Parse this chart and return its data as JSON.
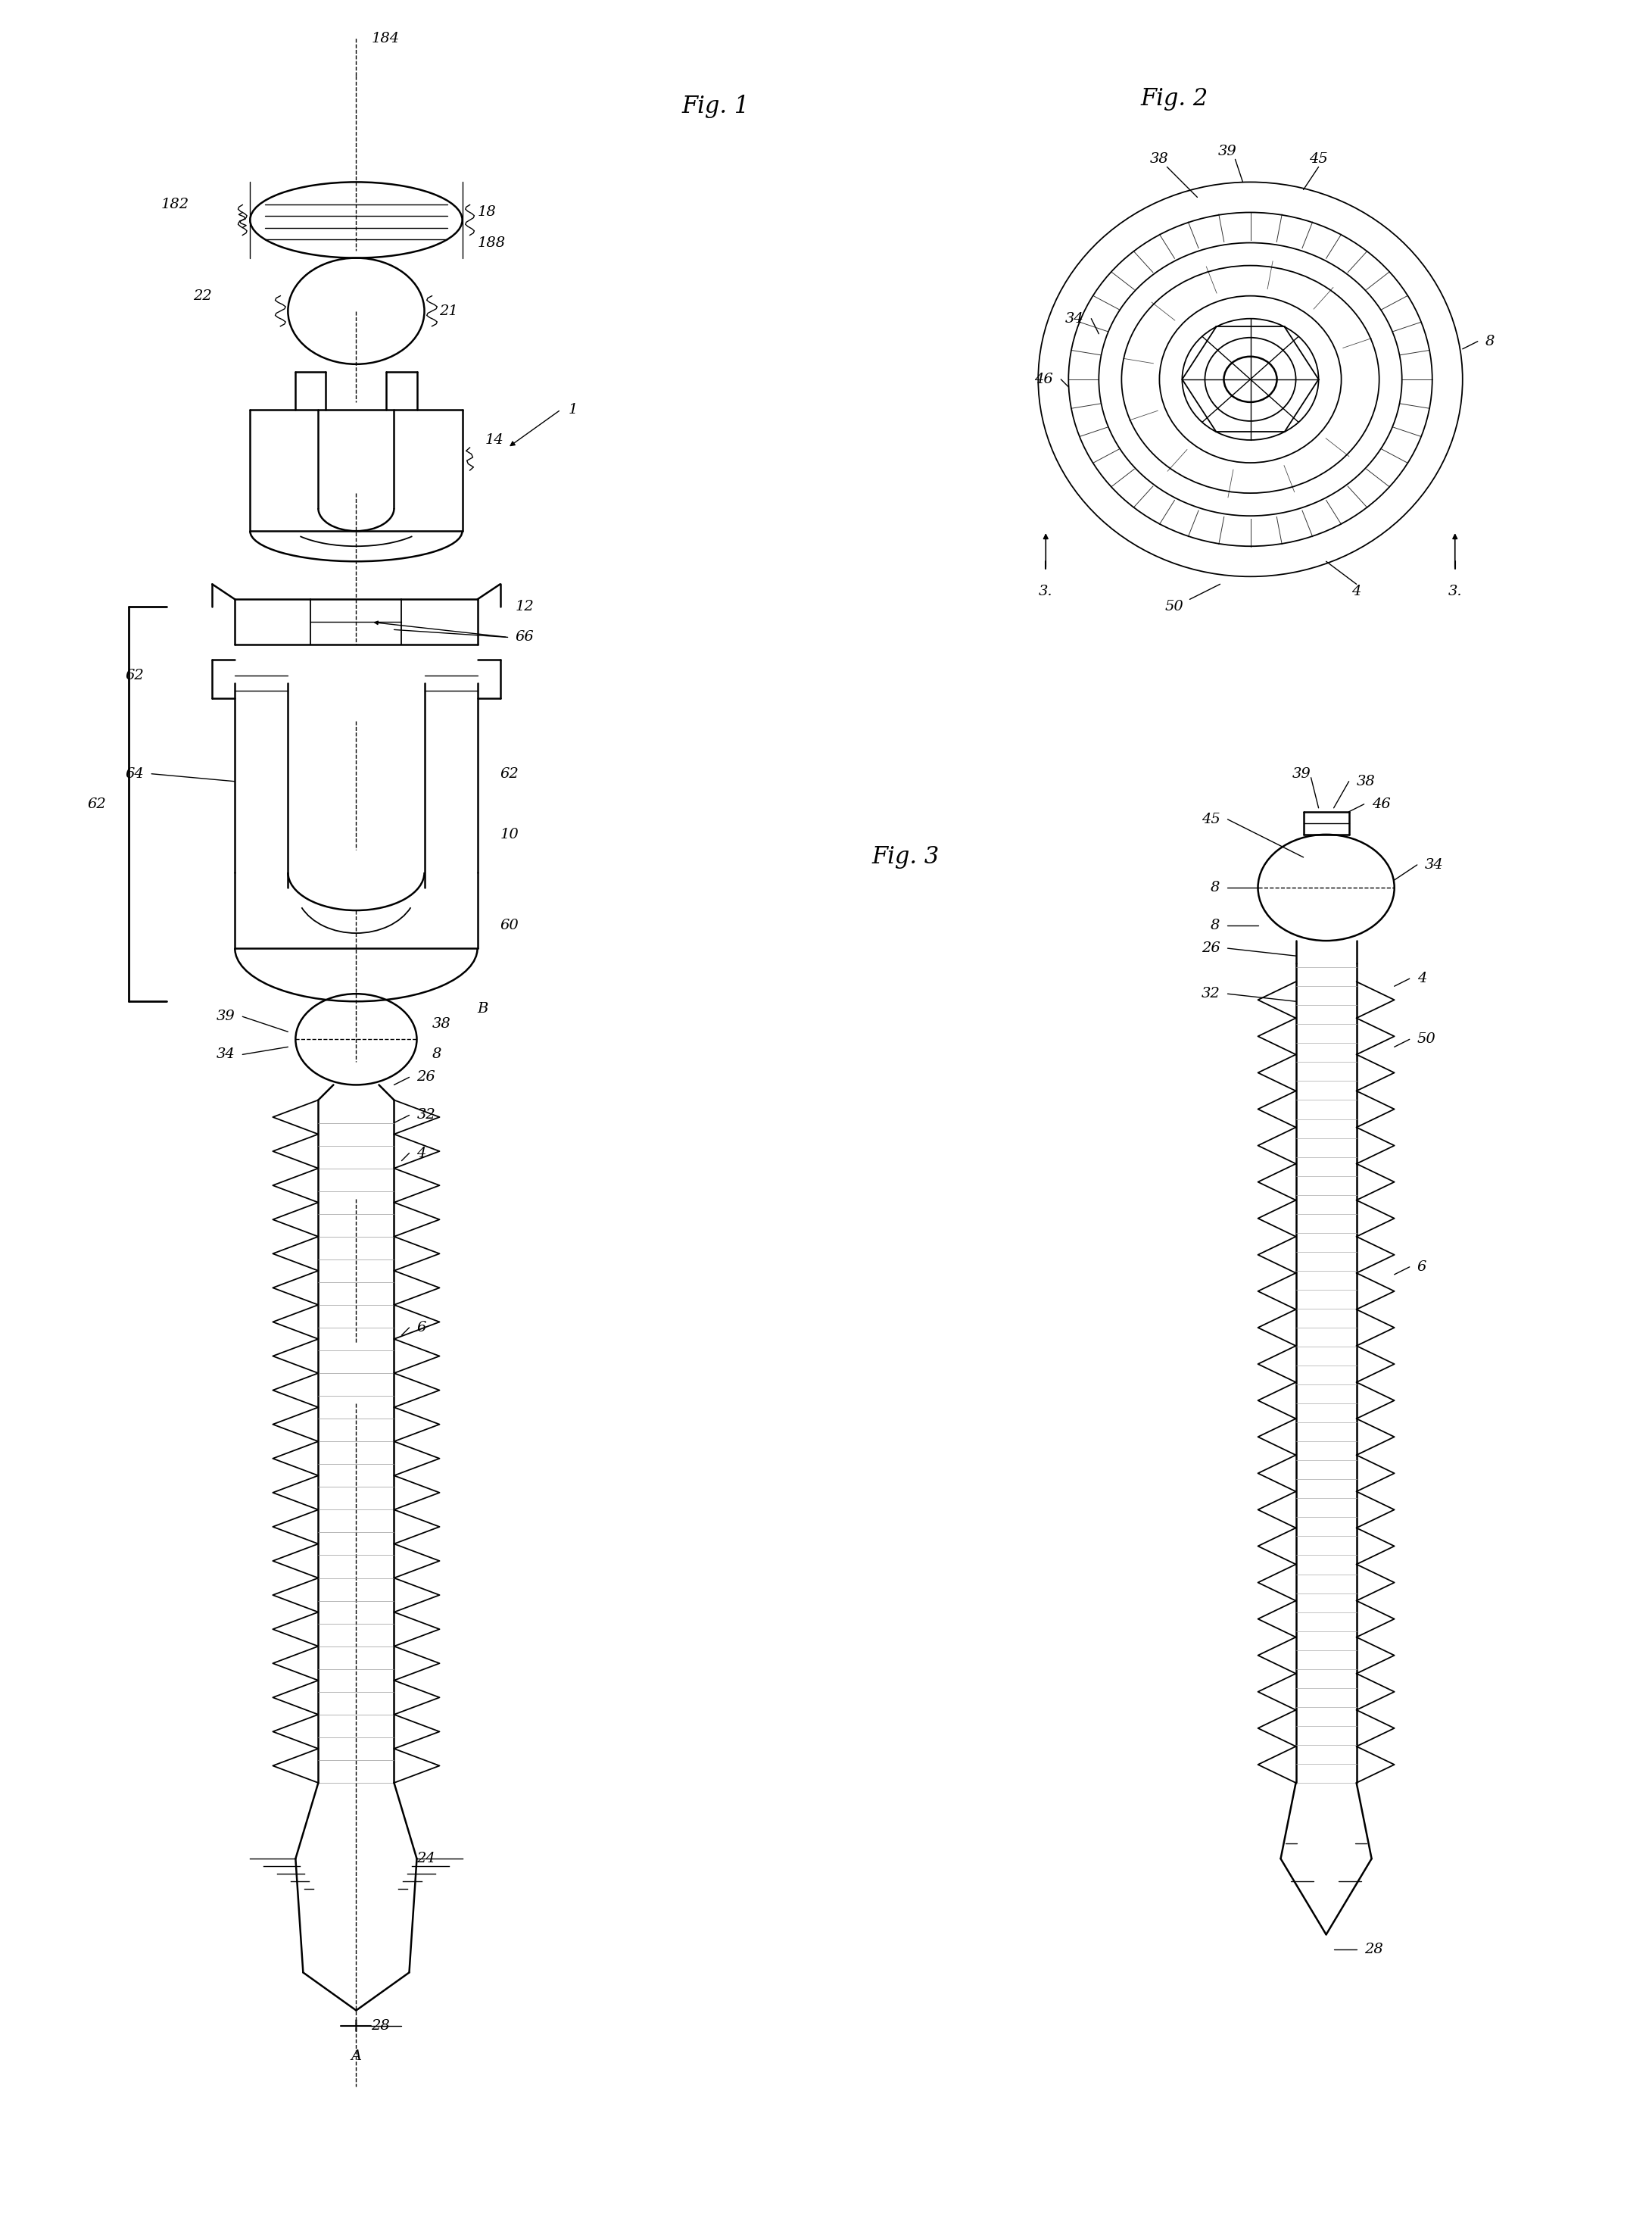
{
  "bg_color": "#ffffff",
  "lw_main": 1.8,
  "lw_thin": 1.0,
  "lw_med": 1.3,
  "label_fs": 14,
  "title_fs": 22,
  "fig1_title": "Fig. 1",
  "fig2_title": "Fig. 2",
  "fig3_title": "Fig. 3"
}
